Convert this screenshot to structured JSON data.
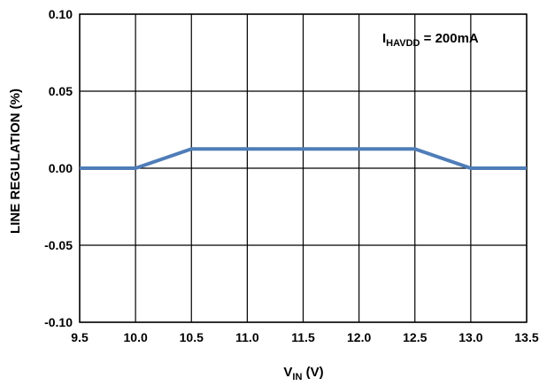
{
  "chart_data": {
    "type": "line",
    "title": "",
    "xlabel": {
      "main": "V",
      "sub": "IN",
      "unit": " (V)"
    },
    "ylabel": "LINE REGULATION (%)",
    "xlim": [
      9.5,
      13.5
    ],
    "ylim": [
      -0.1,
      0.1
    ],
    "x_ticks": [
      "9.5",
      "10.0",
      "10.5",
      "11.0",
      "11.5",
      "12.0",
      "12.5",
      "13.0",
      "13.5"
    ],
    "y_ticks": [
      "0.10",
      "0.05",
      "0.00",
      "-0.05",
      "-0.10"
    ],
    "x_tick_values": [
      9.5,
      10.0,
      10.5,
      11.0,
      11.5,
      12.0,
      12.5,
      13.0,
      13.5
    ],
    "y_tick_values": [
      0.1,
      0.05,
      0.0,
      -0.05,
      -0.1
    ],
    "grid": true,
    "series": [
      {
        "color": "#4F7DB8",
        "x": [
          9.5,
          10.0,
          10.5,
          11.0,
          11.5,
          12.0,
          12.5,
          13.0,
          13.5
        ],
        "y": [
          0.0,
          0.0,
          0.0125,
          0.0125,
          0.0125,
          0.0125,
          0.0125,
          0.0,
          0.0
        ]
      }
    ],
    "annotation": {
      "main": "I",
      "sub": "HAVDD",
      "rest": " = 200mA"
    }
  }
}
